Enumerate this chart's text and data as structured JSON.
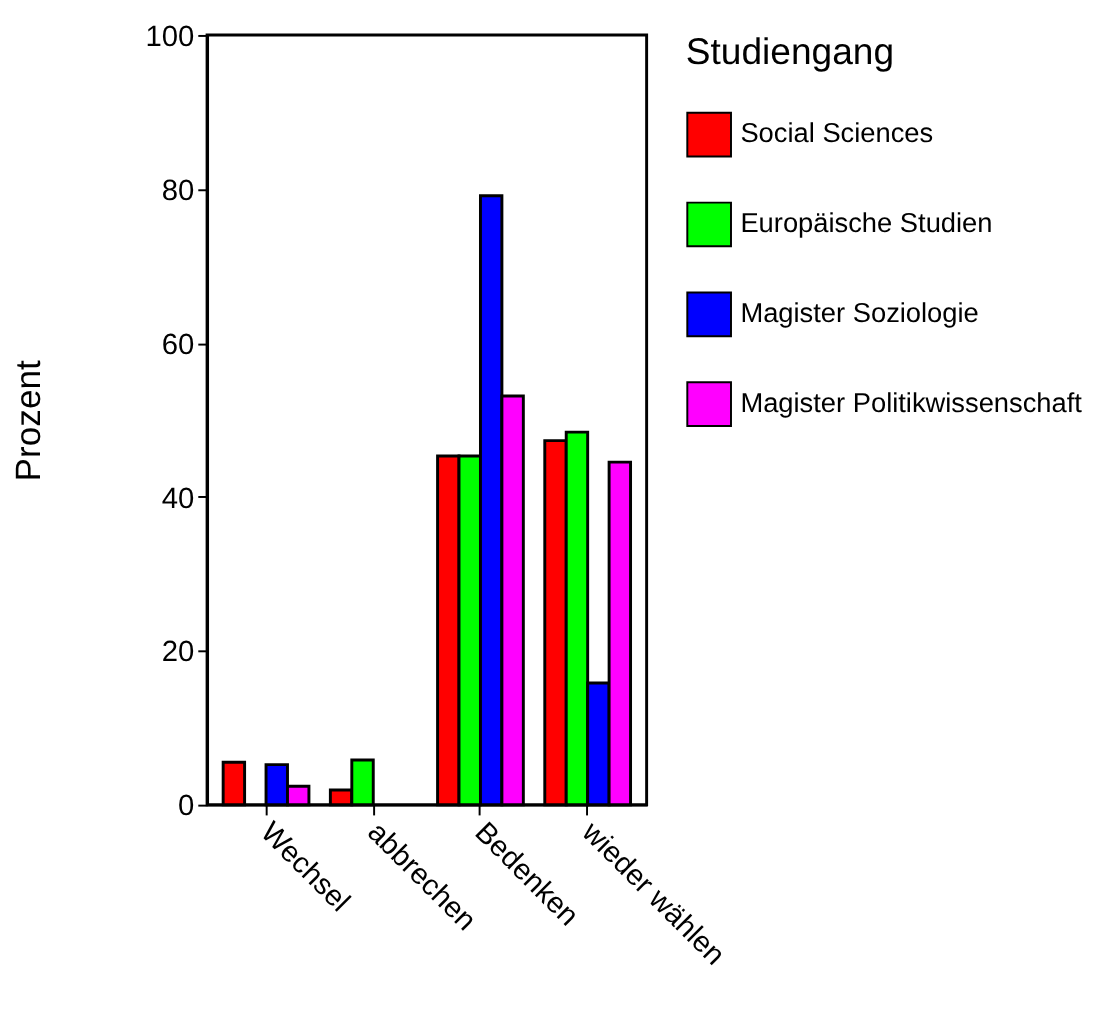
{
  "chart_data": {
    "type": "bar",
    "ylabel": "Prozent",
    "legend_title": "Studiengang",
    "categories": [
      "Wechsel",
      "abbrechen",
      "Bedenken",
      "wieder wählen"
    ],
    "series": [
      {
        "name": "Social Sciences",
        "color": "#ff0000",
        "values": [
          5.5,
          1.9,
          45.3,
          47.3
        ]
      },
      {
        "name": "Europäische Studien",
        "color": "#00ff00",
        "values": [
          null,
          5.8,
          45.3,
          48.4
        ]
      },
      {
        "name": "Magister Soziologie",
        "color": "#0000ff",
        "values": [
          5.2,
          null,
          79.1,
          15.8
        ]
      },
      {
        "name": "Magister Politikwissenschaft",
        "color": "#ff00ff",
        "values": [
          2.4,
          null,
          53.1,
          44.5
        ]
      }
    ],
    "ylim": [
      0,
      100
    ],
    "yticks": [
      0,
      20,
      40,
      60,
      80,
      100
    ],
    "grid": false,
    "legend": "right"
  }
}
